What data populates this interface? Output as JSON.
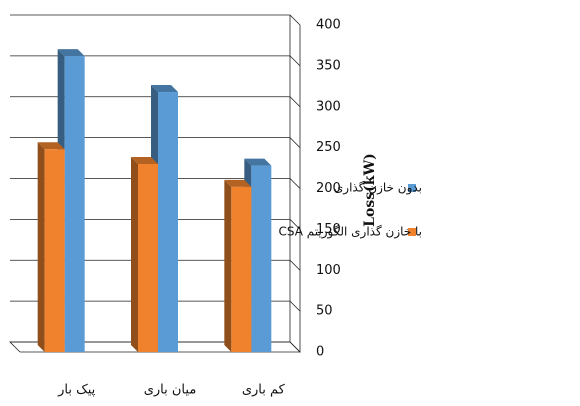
{
  "chart_data": {
    "type": "bar3d",
    "y_axis_label": "Loss(kW)",
    "categories": [
      "پیک بار",
      "میان باری",
      "کم باری"
    ],
    "series": [
      {
        "name": "با خازن گذاری الگوریتم CSA",
        "color": "#f0822d",
        "values": [
          248,
          230,
          202
        ]
      },
      {
        "name": "بدون خازن گذاری",
        "color": "#5b9bd5",
        "values": [
          362,
          318,
          228
        ]
      }
    ],
    "ylim": [
      0,
      400
    ],
    "yticks": [
      0,
      50,
      100,
      150,
      200,
      250,
      300,
      350,
      400
    ],
    "grid": true
  }
}
